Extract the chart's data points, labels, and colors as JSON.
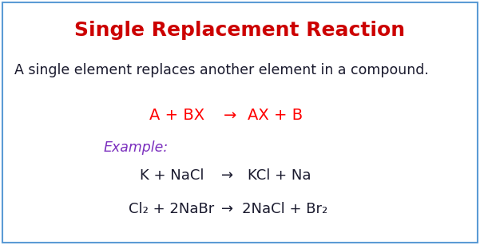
{
  "title": "Single Replacement Reaction",
  "title_color": "#CC0000",
  "title_fontsize": 18,
  "bg_color": "#FFFFFF",
  "border_color": "#5B9BD5",
  "description": "A single element replaces another element in a compound.",
  "desc_color": "#1a1a2e",
  "desc_fontsize": 12.5,
  "general_eq_left": "A + BX",
  "general_eq_arrow": "→",
  "general_eq_right": "AX + B",
  "general_eq_color": "#FF0000",
  "general_eq_fontsize": 14,
  "example_label": "Example:",
  "example_color": "#7B2FBE",
  "example_fontsize": 12.5,
  "eq1_left": "K + NaCl",
  "eq1_arrow": "→",
  "eq1_right": "KCl + Na",
  "eq2_left": "Cl₂ + 2NaBr",
  "eq2_arrow": "→",
  "eq2_right": "2NaCl + Br₂",
  "eq_color": "#1a1a2e",
  "eq_fontsize": 13
}
